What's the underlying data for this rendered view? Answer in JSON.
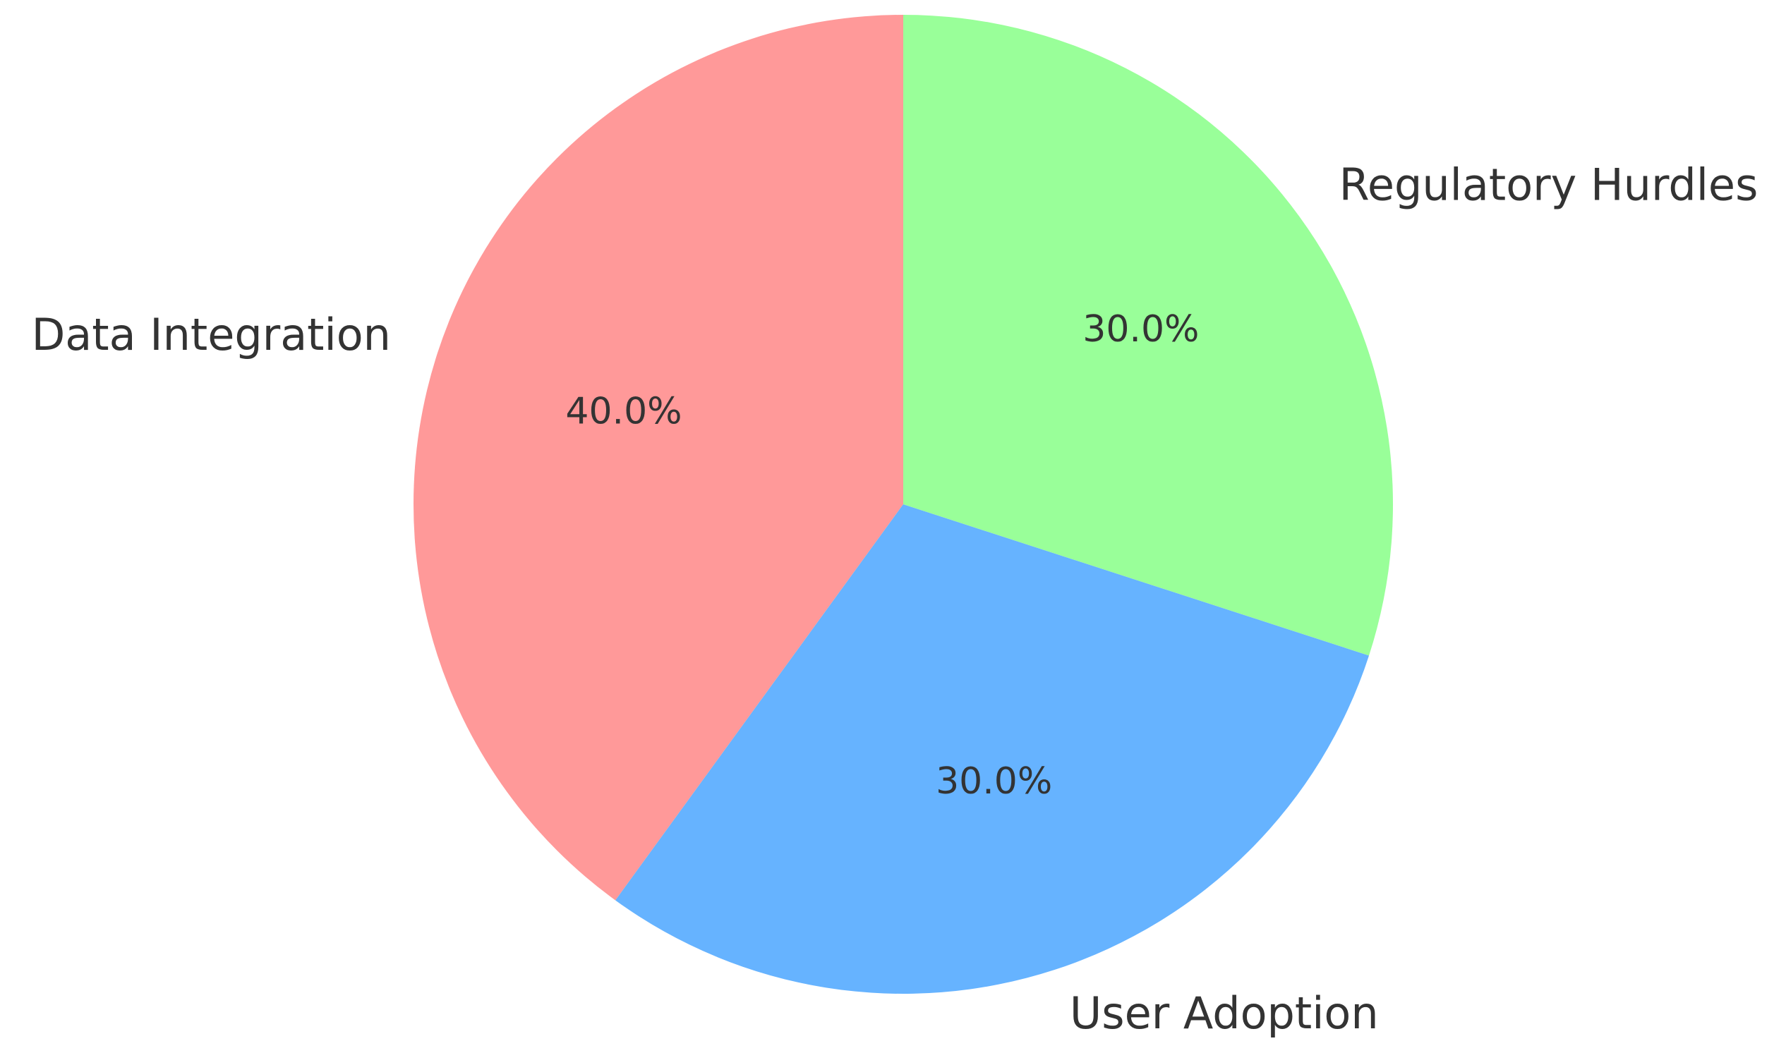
{
  "chart_data": {
    "type": "pie",
    "categories": [
      "Data Integration",
      "User Adoption",
      "Regulatory Hurdles"
    ],
    "values": [
      40,
      30,
      30
    ],
    "value_labels": [
      "40.0%",
      "30.0%",
      "30.0%"
    ],
    "colors": [
      "#ff9999",
      "#66b3ff",
      "#99ff99"
    ]
  }
}
